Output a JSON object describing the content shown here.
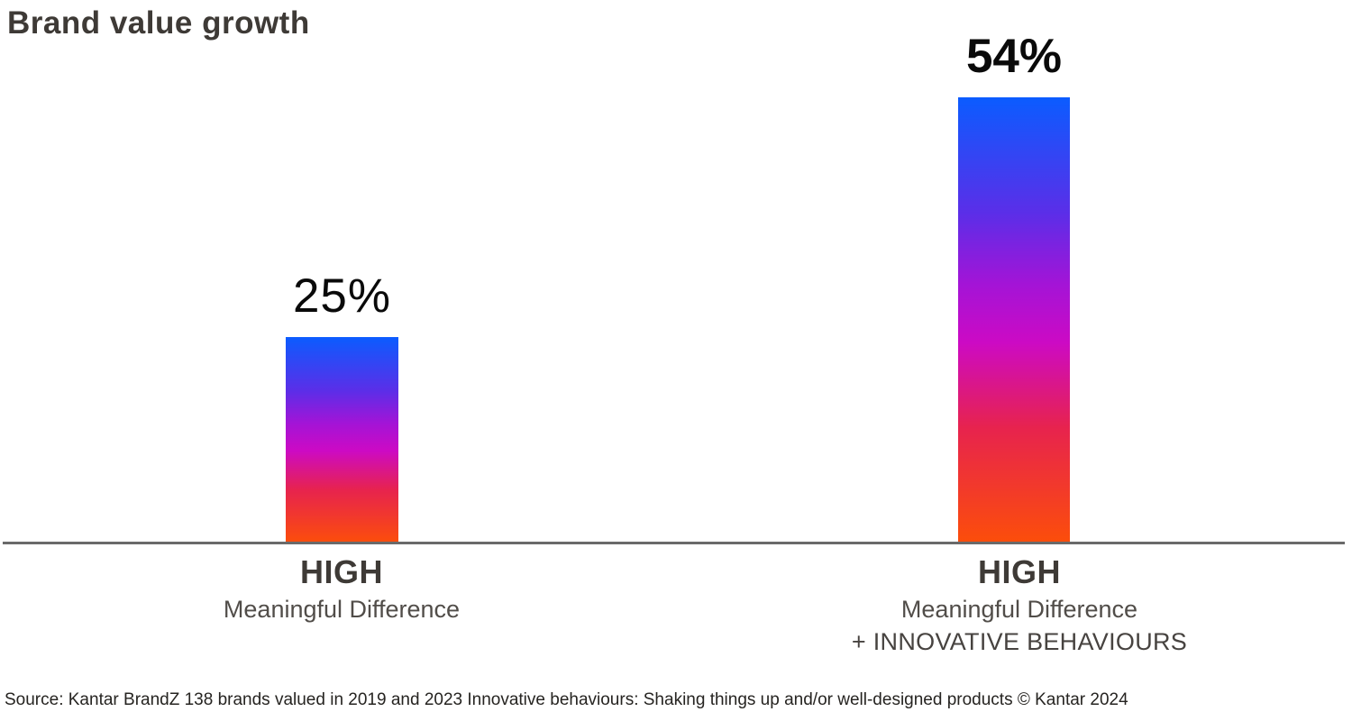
{
  "title": "Brand value growth",
  "source_note": "Source: Kantar BrandZ 138 brands valued in 2019 and 2023 Innovative behaviours: Shaking things up and/or well-designed products © Kantar 2024",
  "chart_data": {
    "type": "bar",
    "title": "Brand value growth",
    "unit": "percent",
    "ylim": [
      0,
      60
    ],
    "grid": false,
    "legend_position": "none",
    "categories": [
      {
        "level": "HIGH",
        "attribute": "Meaningful Difference"
      },
      {
        "level": "HIGH",
        "attribute": "Meaningful Difference",
        "extra": "+ INNOVATIVE BEHAVIOURS"
      }
    ],
    "values": [
      25,
      54
    ],
    "value_labels": [
      "25%",
      "54%"
    ],
    "bar_gradient_top_to_bottom": [
      "#0B5CFF",
      "#5B2EE8",
      "#A414D6",
      "#CC0AC4",
      "#E7234E",
      "#FC4E0A"
    ]
  },
  "colors": {
    "background": "#FFFFFF",
    "grad-1": "#0B5CFF",
    "grad-2": "#5B2EE8",
    "grad-3": "#A414D6",
    "grad-4": "#CC0AC4",
    "grad-5": "#E7234E",
    "grad-6": "#FC4E0A",
    "title-text": "#3E3A36",
    "category-text": "#514D49",
    "value-text": "#0A0A0A",
    "axis-line": "#6A6A6A",
    "source-text": "#262421"
  }
}
